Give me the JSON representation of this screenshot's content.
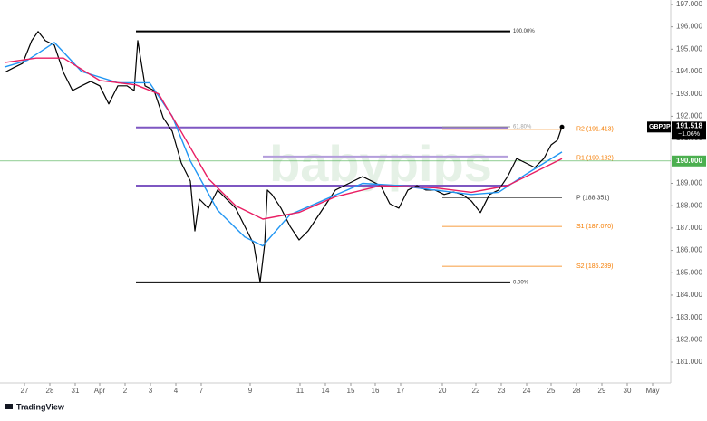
{
  "chart_data": {
    "type": "line",
    "watermark": "babypips",
    "footer": "TradingView",
    "xlim": [
      0,
      740
    ],
    "ylim": [
      180.07,
      197.2
    ],
    "xticks": [
      {
        "value": 27,
        "label": "27"
      },
      {
        "value": 55,
        "label": "28"
      },
      {
        "value": 83,
        "label": "31"
      },
      {
        "value": 110,
        "label": "Apr"
      },
      {
        "value": 138,
        "label": "2"
      },
      {
        "value": 166,
        "label": "3"
      },
      {
        "value": 194,
        "label": "4"
      },
      {
        "value": 222,
        "label": "7"
      },
      {
        "value": 276,
        "label": "9"
      },
      {
        "value": 331,
        "label": "11"
      },
      {
        "value": 359,
        "label": "14"
      },
      {
        "value": 387,
        "label": "15"
      },
      {
        "value": 414,
        "label": "16"
      },
      {
        "value": 442,
        "label": "17"
      },
      {
        "value": 488,
        "label": "20"
      },
      {
        "value": 525,
        "label": "22"
      },
      {
        "value": 553,
        "label": "23"
      },
      {
        "value": 581,
        "label": "24"
      },
      {
        "value": 608,
        "label": "25"
      },
      {
        "value": 636,
        "label": "28"
      },
      {
        "value": 664,
        "label": "29"
      },
      {
        "value": 692,
        "label": "30"
      },
      {
        "value": 720,
        "label": "May"
      }
    ],
    "yticks": [
      {
        "value": 197,
        "label": "197.000"
      },
      {
        "value": 196,
        "label": "196.000"
      },
      {
        "value": 195,
        "label": "195.000"
      },
      {
        "value": 194,
        "label": "194.000"
      },
      {
        "value": 193,
        "label": "193.000"
      },
      {
        "value": 192,
        "label": "192.000"
      },
      {
        "value": 191,
        "label": "191.000"
      },
      {
        "value": 189,
        "label": "189.000"
      },
      {
        "value": 188,
        "label": "188.000"
      },
      {
        "value": 187,
        "label": "187.000"
      },
      {
        "value": 186,
        "label": "186.000"
      },
      {
        "value": 185,
        "label": "185.000"
      },
      {
        "value": 184,
        "label": "184.000"
      },
      {
        "value": 183,
        "label": "183.000"
      },
      {
        "value": 182,
        "label": "182.000"
      },
      {
        "value": 181,
        "label": "181.000"
      }
    ],
    "series": [
      {
        "name": "GBPJPY",
        "color": "#000000",
        "x": [
          5,
          15,
          25,
          35,
          42,
          50,
          60,
          70,
          80,
          90,
          100,
          110,
          120,
          130,
          140,
          148,
          152,
          156,
          160,
          170,
          180,
          190,
          200,
          210,
          215,
          220,
          230,
          240,
          250,
          260,
          270,
          280,
          287,
          292,
          295,
          300,
          310,
          320,
          330,
          340,
          350,
          360,
          370,
          380,
          390,
          400,
          410,
          420,
          430,
          440,
          450,
          460,
          470,
          480,
          490,
          500,
          510,
          520,
          530,
          540,
          550,
          560,
          570,
          580,
          590,
          600,
          608,
          615,
          620
        ],
        "values": [
          193.96,
          194.17,
          194.37,
          195.38,
          195.79,
          195.38,
          195.18,
          193.96,
          193.15,
          193.36,
          193.56,
          193.36,
          192.55,
          193.36,
          193.36,
          193.15,
          195.38,
          194.37,
          193.36,
          193.15,
          191.94,
          191.33,
          189.91,
          189.1,
          186.87,
          188.29,
          187.89,
          188.7,
          188.29,
          187.89,
          187.08,
          186.27,
          184.57,
          186.27,
          188.7,
          188.5,
          187.89,
          187.08,
          186.47,
          186.87,
          187.48,
          188.09,
          188.7,
          188.9,
          189.1,
          189.3,
          189.1,
          188.9,
          188.09,
          187.89,
          188.7,
          188.9,
          188.7,
          188.7,
          188.5,
          188.62,
          188.5,
          188.21,
          187.69,
          188.5,
          188.7,
          189.3,
          190.11,
          189.91,
          189.71,
          190.11,
          190.72,
          190.93,
          191.53
        ]
      },
      {
        "name": "EMA fast",
        "color": "#2196f3",
        "x": [
          5,
          30,
          60,
          90,
          130,
          165,
          190,
          210,
          240,
          270,
          290,
          320,
          360,
          400,
          440,
          480,
          520,
          550,
          580,
          620
        ],
        "values": [
          194.2,
          194.5,
          195.3,
          194.0,
          193.5,
          193.5,
          192.0,
          190.0,
          187.8,
          186.6,
          186.2,
          187.6,
          188.3,
          189.0,
          188.9,
          188.7,
          188.5,
          188.6,
          189.4,
          190.4
        ]
      },
      {
        "name": "EMA slow",
        "color": "#e91e63",
        "x": [
          5,
          40,
          70,
          110,
          150,
          175,
          200,
          230,
          260,
          290,
          330,
          370,
          420,
          480,
          520,
          560,
          590,
          620
        ],
        "values": [
          194.4,
          194.6,
          194.6,
          193.6,
          193.4,
          193.0,
          191.3,
          189.2,
          188.0,
          187.4,
          187.7,
          188.4,
          188.9,
          188.8,
          188.6,
          188.9,
          189.5,
          190.1
        ]
      }
    ],
    "zones": [
      {
        "value": 191.5,
        "x": [
          150,
          560
        ],
        "color": "#7e57c2"
      },
      {
        "value": 190.2,
        "x": [
          290,
          560
        ],
        "color": "#b39ddb"
      },
      {
        "value": 188.9,
        "x": [
          150,
          560
        ],
        "color": "#7e57c2"
      }
    ],
    "fib_levels": [
      {
        "label": "100.00%",
        "value": 195.8,
        "x": [
          150,
          563
        ],
        "color": "#000000"
      },
      {
        "label": "61.80%",
        "value": 191.53,
        "x": [
          488,
          563
        ],
        "color": "#9e9e9e"
      },
      {
        "label": "0.00%",
        "value": 184.57,
        "x": [
          150,
          563
        ],
        "color": "#000000"
      }
    ],
    "pivots": [
      {
        "label": "R2 (191.413)",
        "value": 191.413,
        "x": [
          488,
          620
        ],
        "color": "#f57c00"
      },
      {
        "label": "R1 (190.132)",
        "value": 190.132,
        "x": [
          488,
          620
        ],
        "color": "#f57c00"
      },
      {
        "label": "P (188.351)",
        "value": 188.351,
        "x": [
          488,
          620
        ],
        "color": "#424242"
      },
      {
        "label": "S1 (187.070)",
        "value": 187.07,
        "x": [
          488,
          620
        ],
        "color": "#f57c00"
      },
      {
        "label": "S2 (185.289)",
        "value": 185.289,
        "x": [
          488,
          620
        ],
        "color": "#f57c00"
      }
    ],
    "alert": {
      "value": 190,
      "label": "190.000",
      "color": "#4caf50"
    },
    "last_price": {
      "symbol": "GBPJPY",
      "value": 191.518,
      "change": "−1.06%"
    }
  }
}
